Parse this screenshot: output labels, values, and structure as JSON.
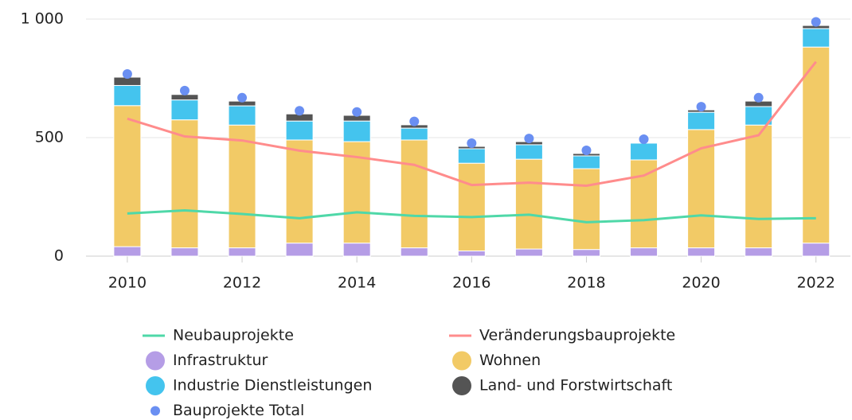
{
  "chart_data": {
    "type": "bar",
    "x": [
      2010,
      2011,
      2012,
      2013,
      2014,
      2015,
      2016,
      2017,
      2018,
      2019,
      2020,
      2021,
      2022
    ],
    "xlim": [
      2009.28,
      2022.6
    ],
    "xticks": [
      2010,
      2012,
      2014,
      2016,
      2018,
      2020,
      2022
    ],
    "ylim": [
      0,
      1000
    ],
    "yticks": [
      0,
      500,
      {
        "value": 1000,
        "label": "1 000"
      }
    ],
    "grid": true,
    "stacked": true,
    "series": [
      {
        "name": "Neubauprojekte",
        "type": "line",
        "color": "#4fd8a8",
        "values": [
          180,
          193,
          178,
          160,
          185,
          170,
          165,
          175,
          143,
          152,
          172,
          157,
          160
        ]
      },
      {
        "name": "Veränderungsbauprojekte",
        "type": "line",
        "color": "#ff8c8c",
        "values": [
          580,
          505,
          488,
          445,
          418,
          385,
          300,
          310,
          297,
          340,
          455,
          510,
          820
        ]
      },
      {
        "name": "Infrastruktur",
        "type": "bar",
        "color": "#b59de6",
        "values": [
          40,
          35,
          35,
          55,
          55,
          35,
          22,
          30,
          28,
          35,
          35,
          35,
          55
        ]
      },
      {
        "name": "Wohnen",
        "type": "bar",
        "color": "#f2ca66",
        "values": [
          595,
          540,
          518,
          435,
          428,
          455,
          370,
          379,
          341,
          371,
          499,
          518,
          827
        ]
      },
      {
        "name": "Industrie Dienstleistungen",
        "type": "bar",
        "color": "#44c4ee",
        "values": [
          85,
          84,
          81,
          80,
          87,
          50,
          61,
          61,
          54,
          71,
          73,
          78,
          78
        ]
      },
      {
        "name": "Land- und Forstwirtschaft",
        "type": "bar",
        "color": "#545454",
        "values": [
          35,
          23,
          20,
          30,
          24,
          14,
          10,
          13,
          10,
          2,
          10,
          23,
          13
        ]
      },
      {
        "name": "Bauprojekte Total",
        "type": "scatter",
        "color": "#6a8ff2",
        "values": [
          755,
          685,
          655,
          600,
          595,
          555,
          463,
          483,
          433,
          480,
          617,
          655,
          975
        ]
      }
    ]
  }
}
